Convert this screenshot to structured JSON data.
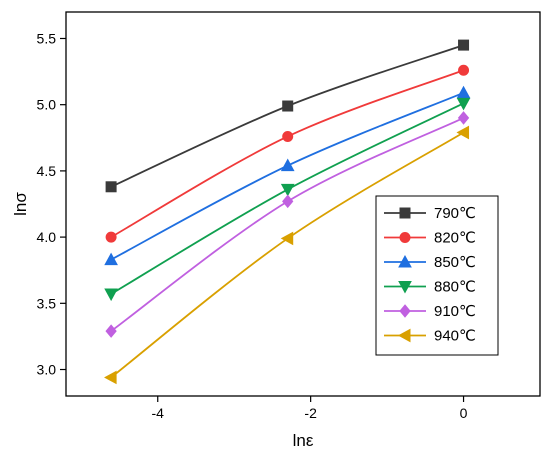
{
  "chart_data": {
    "type": "line",
    "xlabel": "lnε",
    "ylabel": "lnσ",
    "xlim": [
      -5.2,
      1.0
    ],
    "ylim": [
      2.8,
      5.7
    ],
    "xticks": [
      -4,
      -2,
      0
    ],
    "yticks": [
      3.0,
      3.5,
      4.0,
      4.5,
      5.0,
      5.5
    ],
    "x_tick_labels": [
      "-4",
      "-2",
      "0"
    ],
    "y_tick_labels": [
      "3.0",
      "3.5",
      "4.0",
      "4.5",
      "5.0",
      "5.5"
    ],
    "legend_position": "lower-right",
    "grid": false,
    "x": [
      -4.61,
      -2.3,
      0.0
    ],
    "series": [
      {
        "name": "790℃",
        "color": "#3a3a3a",
        "marker": "square",
        "values": [
          4.38,
          4.99,
          5.45
        ]
      },
      {
        "name": "820℃",
        "color": "#f03a3a",
        "marker": "circle",
        "values": [
          4.0,
          4.76,
          5.26
        ]
      },
      {
        "name": "850℃",
        "color": "#1f6fe0",
        "marker": "triangle-up",
        "values": [
          3.83,
          4.54,
          5.09
        ]
      },
      {
        "name": "880℃",
        "color": "#10a050",
        "marker": "triangle-down",
        "values": [
          3.57,
          4.36,
          5.01
        ]
      },
      {
        "name": "910℃",
        "color": "#c060e0",
        "marker": "diamond",
        "values": [
          3.29,
          4.27,
          4.9
        ]
      },
      {
        "name": "940℃",
        "color": "#d9a000",
        "marker": "triangle-left",
        "values": [
          2.94,
          3.99,
          4.79
        ]
      }
    ]
  }
}
